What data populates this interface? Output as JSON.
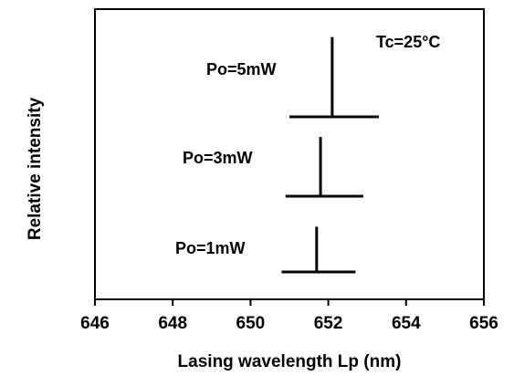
{
  "chart_data": {
    "type": "line",
    "title": "",
    "xlabel": "Lasing wavelength  Lp (nm)",
    "ylabel": "Relative intensity",
    "xlim": [
      646,
      656
    ],
    "x_ticks": [
      "646",
      "648",
      "650",
      "652",
      "654",
      "656"
    ],
    "y_ticks": [],
    "annotation": "Tc=25°C",
    "series": [
      {
        "name": "Po=5mW",
        "peak_wavelength": 652.1,
        "baseline_range": [
          651.0,
          653.3
        ],
        "relative_peak": 0.74
      },
      {
        "name": "Po=3mW",
        "peak_wavelength": 651.8,
        "baseline_range": [
          650.9,
          652.9
        ],
        "relative_peak": 0.55
      },
      {
        "name": "Po=1mW",
        "peak_wavelength": 651.7,
        "baseline_range": [
          650.8,
          652.7
        ],
        "relative_peak": 0.42
      }
    ]
  }
}
